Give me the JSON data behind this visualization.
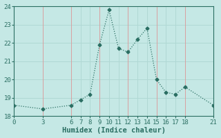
{
  "x": [
    0,
    3,
    6,
    7,
    8,
    9,
    10,
    11,
    12,
    13,
    14,
    15,
    16,
    17,
    18,
    21
  ],
  "y": [
    18.6,
    18.4,
    18.6,
    18.9,
    19.2,
    21.9,
    23.8,
    21.7,
    21.5,
    22.2,
    22.8,
    20.0,
    19.3,
    19.2,
    19.6,
    18.6
  ],
  "line_color": "#2a6e62",
  "marker": "D",
  "marker_size": 2.5,
  "bg_color": "#c5e8e5",
  "grid_color_major": "#b0d8d4",
  "grid_color_red": "#d9a0a0",
  "xlabel": "Humidex (Indice chaleur)",
  "xlabel_fontsize": 7.5,
  "ylim": [
    18,
    24
  ],
  "xlim": [
    0,
    21
  ],
  "yticks": [
    18,
    19,
    20,
    21,
    22,
    23,
    24
  ],
  "xticks": [
    0,
    3,
    6,
    7,
    8,
    9,
    10,
    11,
    12,
    13,
    14,
    15,
    16,
    17,
    18,
    21
  ],
  "red_vlines": [
    3,
    6,
    9,
    12,
    15,
    18
  ],
  "tick_fontsize": 6.5
}
